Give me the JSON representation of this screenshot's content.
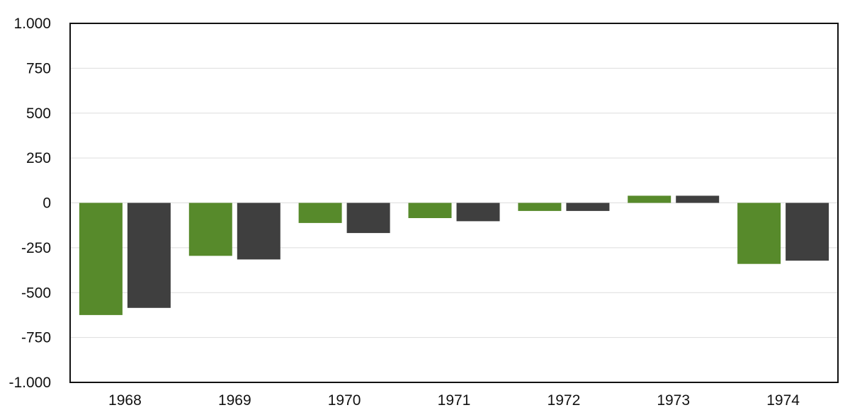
{
  "chart_data": {
    "type": "bar",
    "categories": [
      "1968",
      "1969",
      "1970",
      "1971",
      "1972",
      "1973",
      "1974"
    ],
    "series": [
      {
        "color": "#578a2b",
        "values": [
          -625,
          -295,
          -112,
          -85,
          -45,
          40,
          -340
        ]
      },
      {
        "color": "#3f3f3f",
        "values": [
          -585,
          -315,
          -168,
          -102,
          -45,
          40,
          -322
        ]
      }
    ],
    "ylim": [
      -1000,
      1000
    ],
    "yticks": [
      1000,
      750,
      500,
      250,
      0,
      -250,
      -500,
      -750,
      -1000
    ],
    "ytick_labels": [
      "1.000",
      "750",
      "500",
      "250",
      "0",
      "-250",
      "-500",
      "-750",
      "-1.000"
    ],
    "grid": true,
    "legend": "none"
  }
}
